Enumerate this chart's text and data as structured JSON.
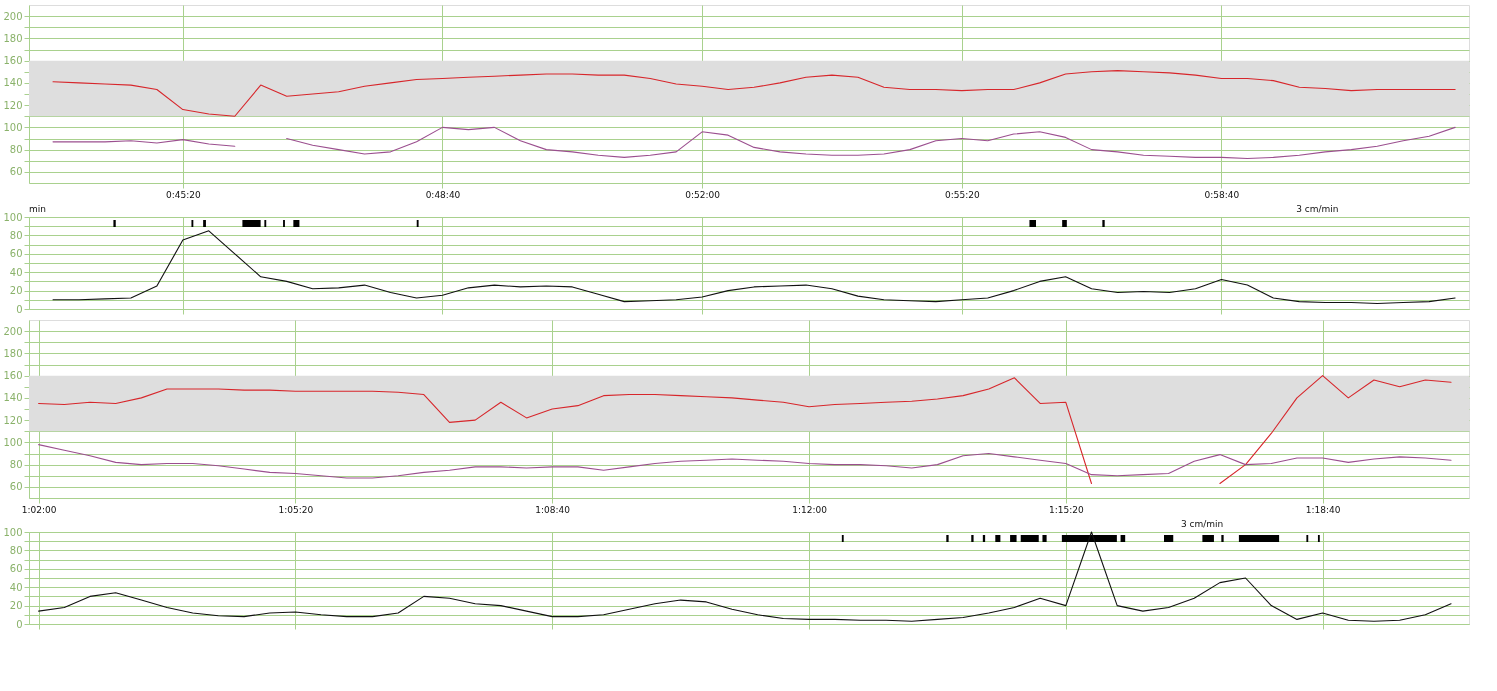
{
  "chart_data": [
    {
      "type": "line",
      "xlim": [
        0.72264,
        1.03075
      ],
      "ylim": [
        50,
        210
      ],
      "grid": true,
      "xticks": [
        {
          "value": 0.75556,
          "label": "0:45:20"
        },
        {
          "value": 0.81111,
          "label": "0:48:40"
        },
        {
          "value": 0.86667,
          "label": "0:52:00"
        },
        {
          "value": 0.92222,
          "label": "0:55:20"
        },
        {
          "value": 0.97778,
          "label": "0:58:40"
        }
      ],
      "yticks": [
        60,
        {
          "value": 70,
          "label": null
        },
        80,
        {
          "value": 90,
          "label": null
        },
        100,
        {
          "value": 110,
          "label": null
        },
        120,
        {
          "value": 130,
          "label": null
        },
        140,
        {
          "value": 150,
          "label": null
        },
        160,
        {
          "value": 170,
          "label": null
        },
        180,
        {
          "value": 190,
          "label": null
        },
        200
      ],
      "bands": [
        {
          "axis": "y",
          "from": 110,
          "to": 160,
          "color": "#dedede"
        }
      ],
      "x": [
        0.72778,
        0.73333,
        0.73889,
        0.74444,
        0.75,
        0.75556,
        0.76111,
        0.76667,
        0.77222,
        0.77778,
        0.78333,
        0.78889,
        0.79444,
        0.8,
        0.80556,
        0.81111,
        0.81667,
        0.82222,
        0.82778,
        0.83333,
        0.83889,
        0.84444,
        0.85,
        0.85556,
        0.86111,
        0.86667,
        0.87222,
        0.87778,
        0.88333,
        0.88889,
        0.89444,
        0.9,
        0.90556,
        0.91111,
        0.91667,
        0.92222,
        0.92778,
        0.93333,
        0.93889,
        0.94444,
        0.95,
        0.95556,
        0.96111,
        0.96667,
        0.97222,
        0.97778,
        0.98333,
        0.98889,
        0.99444,
        1.0,
        1.00556,
        1.01111,
        1.01667,
        1.02222,
        1.02778
      ],
      "series": [
        {
          "color": "#d7262b",
          "values": [
            141,
            140,
            139,
            138,
            134,
            116,
            112,
            110,
            138,
            128,
            130,
            132,
            137,
            140,
            143,
            144,
            145,
            146,
            147,
            148,
            148,
            147,
            147,
            144,
            139,
            137,
            134,
            136,
            140,
            145,
            147,
            145,
            136,
            134,
            134,
            133,
            134,
            134,
            140,
            148,
            150,
            151,
            150,
            149,
            147,
            144,
            144,
            142,
            136,
            135,
            133,
            134,
            134,
            134,
            134
          ]
        },
        {
          "color": "#9b4f8f",
          "values": [
            87,
            87,
            87,
            88,
            86,
            89,
            85,
            83,
            null,
            90,
            84,
            80,
            76,
            78,
            87,
            100,
            98,
            100,
            88,
            80,
            78,
            75,
            73,
            75,
            78,
            96,
            93,
            82,
            78,
            76,
            75,
            75,
            76,
            80,
            88,
            90,
            88,
            94,
            96,
            91,
            80,
            78,
            75,
            74,
            73,
            73,
            72,
            73,
            75,
            78,
            80,
            83,
            88,
            92,
            100
          ]
        }
      ]
    },
    {
      "type": "line",
      "xlim": [
        0.72264,
        1.03075
      ],
      "ylim": [
        0,
        100
      ],
      "grid": true,
      "tick_labels": "y",
      "xticks": [
        {
          "value": 0.75556,
          "label": null
        },
        {
          "value": 0.81111,
          "label": null
        },
        {
          "value": 0.86667,
          "label": null
        },
        {
          "value": 0.92222,
          "label": null
        },
        {
          "value": 0.97778,
          "label": null
        }
      ],
      "yticks": [
        0,
        {
          "value": 10,
          "label": null
        },
        20,
        {
          "value": 30,
          "label": null
        },
        40,
        {
          "value": 50,
          "label": null
        },
        60,
        {
          "value": 70,
          "label": null
        },
        80,
        {
          "value": 90,
          "label": null
        },
        100
      ],
      "annotations": [
        "min",
        "3 cm/min"
      ],
      "bands": [
        {
          "axis": "x",
          "from": 0.7407,
          "to": 0.7412,
          "color": "#000000"
        },
        {
          "axis": "x",
          "from": 0.7574,
          "to": 0.7578,
          "color": "#000000"
        },
        {
          "axis": "x",
          "from": 0.7599,
          "to": 0.7605,
          "color": "#000000"
        },
        {
          "axis": "x",
          "from": 0.7683,
          "to": 0.7722,
          "color": "#000000"
        },
        {
          "axis": "x",
          "from": 0.773,
          "to": 0.7734,
          "color": "#000000"
        },
        {
          "axis": "x",
          "from": 0.777,
          "to": 0.7774,
          "color": "#000000"
        },
        {
          "axis": "x",
          "from": 0.7792,
          "to": 0.7805,
          "color": "#000000"
        },
        {
          "axis": "x",
          "from": 0.8056,
          "to": 0.806,
          "color": "#000000"
        },
        {
          "axis": "x",
          "from": 0.9367,
          "to": 0.9381,
          "color": "#000000"
        },
        {
          "axis": "x",
          "from": 0.9437,
          "to": 0.9447,
          "color": "#000000"
        },
        {
          "axis": "x",
          "from": 0.9523,
          "to": 0.9528,
          "color": "#000000"
        }
      ],
      "x": [
        0.72778,
        0.73333,
        0.73889,
        0.74444,
        0.75,
        0.75556,
        0.76111,
        0.76667,
        0.77222,
        0.77778,
        0.78333,
        0.78889,
        0.79444,
        0.8,
        0.80556,
        0.81111,
        0.81667,
        0.82222,
        0.82778,
        0.83333,
        0.83889,
        0.84444,
        0.85,
        0.85556,
        0.86111,
        0.86667,
        0.87222,
        0.87778,
        0.88333,
        0.88889,
        0.89444,
        0.9,
        0.90556,
        0.91111,
        0.91667,
        0.92222,
        0.92778,
        0.93333,
        0.93889,
        0.94444,
        0.95,
        0.95556,
        0.96111,
        0.96667,
        0.97222,
        0.97778,
        0.98333,
        0.98889,
        0.99444,
        1.0,
        1.00556,
        1.01111,
        1.01667,
        1.02222,
        1.02778
      ],
      "series": [
        {
          "color": "#111111",
          "values": [
            10,
            10,
            11,
            12,
            25,
            75,
            85,
            60,
            35,
            30,
            22,
            23,
            26,
            18,
            12,
            15,
            23,
            26,
            24,
            25,
            24,
            16,
            8,
            9,
            10,
            13,
            20,
            24,
            25,
            26,
            22,
            14,
            10,
            9,
            8,
            10,
            12,
            20,
            30,
            35,
            22,
            18,
            19,
            18,
            22,
            32,
            26,
            12,
            8,
            7,
            7,
            6,
            7,
            8,
            12
          ]
        }
      ]
    },
    {
      "type": "line",
      "xlim": [
        1.03125,
        1.34278
      ],
      "ylim": [
        50,
        210
      ],
      "grid": true,
      "xticks": [
        {
          "value": 1.03333,
          "label": "1:02:00"
        },
        {
          "value": 1.08889,
          "label": "1:05:20"
        },
        {
          "value": 1.14444,
          "label": "1:08:40"
        },
        {
          "value": 1.2,
          "label": "1:12:00"
        },
        {
          "value": 1.25556,
          "label": "1:15:20"
        },
        {
          "value": 1.31111,
          "label": "1:18:40"
        }
      ],
      "yticks": [
        60,
        {
          "value": 70,
          "label": null
        },
        80,
        {
          "value": 90,
          "label": null
        },
        100,
        {
          "value": 110,
          "label": null
        },
        120,
        {
          "value": 130,
          "label": null
        },
        140,
        {
          "value": 150,
          "label": null
        },
        160,
        {
          "value": 170,
          "label": null
        },
        180,
        {
          "value": 190,
          "label": null
        },
        200
      ],
      "bands": [
        {
          "axis": "y",
          "from": 110,
          "to": 160,
          "color": "#dedede"
        }
      ],
      "x": [
        1.03333,
        1.03889,
        1.04444,
        1.05,
        1.05556,
        1.06111,
        1.06667,
        1.07222,
        1.07778,
        1.08333,
        1.08889,
        1.09444,
        1.1,
        1.10556,
        1.11111,
        1.11667,
        1.12222,
        1.12778,
        1.13333,
        1.13889,
        1.14444,
        1.15,
        1.15556,
        1.16111,
        1.16667,
        1.17222,
        1.17778,
        1.18333,
        1.18889,
        1.19444,
        1.2,
        1.20556,
        1.21111,
        1.21667,
        1.22222,
        1.22778,
        1.23333,
        1.23889,
        1.24444,
        1.25,
        1.25556,
        1.26111,
        1.26667,
        1.27222,
        1.27778,
        1.28333,
        1.28889,
        1.29444,
        1.3,
        1.30556,
        1.31111,
        1.31667,
        1.32222,
        1.32778,
        1.33333,
        1.33889
      ],
      "series": [
        {
          "color": "#d7262b",
          "values": [
            135,
            134,
            136,
            135,
            140,
            148,
            148,
            148,
            147,
            147,
            146,
            146,
            146,
            146,
            145,
            143,
            118,
            120,
            136,
            122,
            130,
            133,
            142,
            143,
            143,
            142,
            141,
            140,
            138,
            136,
            132,
            134,
            135,
            136,
            137,
            139,
            142,
            148,
            158,
            135,
            136,
            63,
            null,
            null,
            null,
            null,
            63,
            80,
            108,
            140,
            160,
            140,
            156,
            150,
            156,
            154
          ]
        },
        {
          "color": "#9b4f8f",
          "values": [
            98,
            93,
            88,
            82,
            80,
            81,
            81,
            79,
            76,
            73,
            72,
            70,
            68,
            68,
            70,
            73,
            75,
            78,
            78,
            77,
            78,
            78,
            75,
            78,
            81,
            83,
            84,
            85,
            84,
            83,
            81,
            80,
            80,
            79,
            77,
            80,
            88,
            90,
            87,
            84,
            81,
            71,
            70,
            71,
            72,
            83,
            89,
            80,
            81,
            86,
            86,
            82,
            85,
            87,
            86,
            84
          ]
        }
      ]
    },
    {
      "type": "line",
      "xlim": [
        1.03125,
        1.34278
      ],
      "ylim": [
        0,
        100
      ],
      "grid": true,
      "tick_labels": "y",
      "xticks": [
        {
          "value": 1.03333,
          "label": null
        },
        {
          "value": 1.08889,
          "label": null
        },
        {
          "value": 1.14444,
          "label": null
        },
        {
          "value": 1.2,
          "label": null
        },
        {
          "value": 1.25556,
          "label": null
        },
        {
          "value": 1.31111,
          "label": null
        }
      ],
      "yticks": [
        0,
        {
          "value": 10,
          "label": null
        },
        20,
        {
          "value": 30,
          "label": null
        },
        40,
        {
          "value": 50,
          "label": null
        },
        60,
        {
          "value": 70,
          "label": null
        },
        80,
        {
          "value": 90,
          "label": null
        },
        100
      ],
      "annotations": [
        "3 cm/min"
      ],
      "bands": [
        {
          "axis": "x",
          "from": 1.2071,
          "to": 1.2075,
          "color": "#000000"
        },
        {
          "axis": "x",
          "from": 1.2297,
          "to": 1.2302,
          "color": "#000000"
        },
        {
          "axis": "x",
          "from": 1.2351,
          "to": 1.2356,
          "color": "#000000"
        },
        {
          "axis": "x",
          "from": 1.2376,
          "to": 1.2381,
          "color": "#000000"
        },
        {
          "axis": "x",
          "from": 1.2403,
          "to": 1.2414,
          "color": "#000000"
        },
        {
          "axis": "x",
          "from": 1.2435,
          "to": 1.2449,
          "color": "#000000"
        },
        {
          "axis": "x",
          "from": 1.2458,
          "to": 1.2497,
          "color": "#000000"
        },
        {
          "axis": "x",
          "from": 1.2505,
          "to": 1.2514,
          "color": "#000000"
        },
        {
          "axis": "x",
          "from": 1.2547,
          "to": 1.2666,
          "color": "#000000"
        },
        {
          "axis": "x",
          "from": 1.2674,
          "to": 1.2684,
          "color": "#000000"
        },
        {
          "axis": "x",
          "from": 1.2768,
          "to": 1.2788,
          "color": "#000000"
        },
        {
          "axis": "x",
          "from": 1.2851,
          "to": 1.2876,
          "color": "#000000"
        },
        {
          "axis": "x",
          "from": 1.2892,
          "to": 1.2897,
          "color": "#000000"
        },
        {
          "axis": "x",
          "from": 1.293,
          "to": 1.3017,
          "color": "#000000"
        },
        {
          "axis": "x",
          "from": 1.3076,
          "to": 1.308,
          "color": "#000000"
        },
        {
          "axis": "x",
          "from": 1.3101,
          "to": 1.3105,
          "color": "#000000"
        }
      ],
      "x": [
        1.03333,
        1.03889,
        1.04444,
        1.05,
        1.05556,
        1.06111,
        1.06667,
        1.07222,
        1.07778,
        1.08333,
        1.08889,
        1.09444,
        1.1,
        1.10556,
        1.11111,
        1.11667,
        1.12222,
        1.12778,
        1.13333,
        1.13889,
        1.14444,
        1.15,
        1.15556,
        1.16111,
        1.16667,
        1.17222,
        1.17778,
        1.18333,
        1.18889,
        1.19444,
        1.2,
        1.20556,
        1.21111,
        1.21667,
        1.22222,
        1.22778,
        1.23333,
        1.23889,
        1.24444,
        1.25,
        1.25556,
        1.26111,
        1.26667,
        1.27222,
        1.27778,
        1.28333,
        1.28889,
        1.29444,
        1.3,
        1.30556,
        1.31111,
        1.31667,
        1.32222,
        1.32778,
        1.33333,
        1.33889
      ],
      "series": [
        {
          "color": "#111111",
          "values": [
            14,
            18,
            30,
            34,
            26,
            18,
            12,
            9,
            8,
            12,
            13,
            10,
            8,
            8,
            12,
            30,
            28,
            22,
            20,
            14,
            8,
            8,
            10,
            16,
            22,
            26,
            24,
            16,
            10,
            6,
            5,
            5,
            4,
            4,
            3,
            5,
            7,
            12,
            18,
            28,
            20,
            100,
            20,
            14,
            18,
            28,
            45,
            50,
            20,
            5,
            12,
            4,
            3,
            4,
            10,
            22
          ]
        }
      ]
    }
  ]
}
